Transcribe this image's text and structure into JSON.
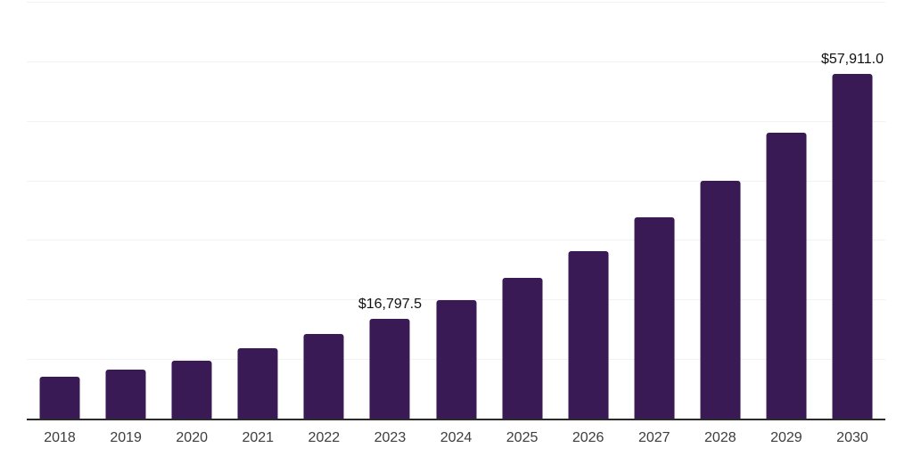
{
  "chart_data": {
    "type": "bar",
    "title": "",
    "xlabel": "",
    "ylabel": "",
    "categories": [
      "2018",
      "2019",
      "2020",
      "2021",
      "2022",
      "2023",
      "2024",
      "2025",
      "2026",
      "2027",
      "2028",
      "2029",
      "2030"
    ],
    "values": [
      7050,
      8200,
      9750,
      11800,
      14200,
      16797.5,
      19850,
      23600,
      28200,
      33750,
      40000,
      48050,
      57911
    ],
    "data_labels": [
      null,
      null,
      null,
      null,
      null,
      "$16,797.5",
      null,
      null,
      null,
      null,
      null,
      null,
      "$57,911.0"
    ],
    "ylim": [
      0,
      70000
    ],
    "gridline_step": 10000,
    "grid": "horizontal-only",
    "legend": "none",
    "y_axis_tick_labels_shown": false,
    "colors": {
      "bar": "#3a1a55",
      "axis_line": "#2b2b2b",
      "gridline": "#f2f2f4",
      "data_label_text": "#111111",
      "tick_label_text": "#3d3d3d",
      "background": "#ffffff"
    }
  }
}
